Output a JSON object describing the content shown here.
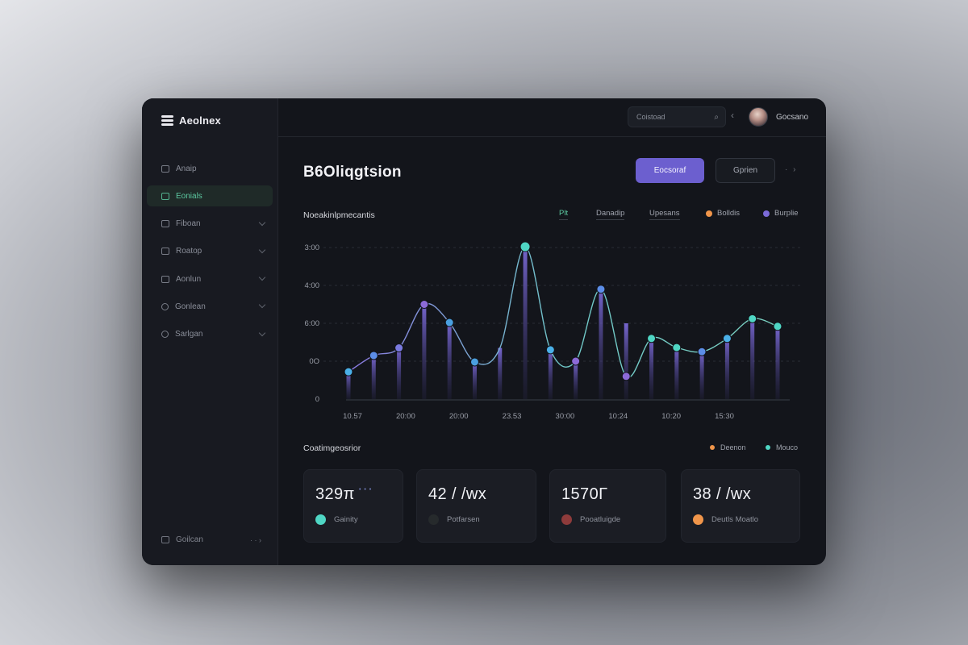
{
  "app": {
    "name": "Aeolnex"
  },
  "colors": {
    "accent": "#6c5fcf",
    "green": "#5cc8a0",
    "teal": "#4fd6c4",
    "purple": "#7b6ad8",
    "orange": "#f0954a",
    "maroon": "#8e3b3b"
  },
  "sidebar": {
    "items": [
      {
        "label": "Anaip",
        "icon": "grid-icon"
      },
      {
        "label": "Eonials",
        "icon": "chart-icon"
      },
      {
        "label": "Fiboan",
        "icon": "folder-icon"
      },
      {
        "label": "Roatop",
        "icon": "layers-icon"
      },
      {
        "label": "Aonlun",
        "icon": "users-icon"
      },
      {
        "label": "Gonlean",
        "icon": "clock-icon"
      },
      {
        "label": "Sarlgan",
        "icon": "settings-icon"
      }
    ],
    "footer": {
      "label": "Goilcan",
      "arrow": "· · ›"
    }
  },
  "topbar": {
    "search_placeholder": "Coistoad",
    "search_icon_glyph": "⌕",
    "back_glyph": "‹",
    "user_name": "Gocsano"
  },
  "header": {
    "title": "B6Oliqgtsion",
    "primary_button": "Eocsoraf",
    "secondary_button": "Gprien",
    "next_glyph": "· ›"
  },
  "chart": {
    "heading": "Noeakinlpmecantis",
    "legend": [
      {
        "label": "Plt",
        "color": "#5cc8a0",
        "style": "underline"
      },
      {
        "label": "Danadip",
        "color": "",
        "style": "underline"
      },
      {
        "label": "Upesans",
        "color": "",
        "style": "underline"
      },
      {
        "label": "Bolldis",
        "color": "#f0954a",
        "style": "dot"
      },
      {
        "label": "Burplie",
        "color": "#7b6ad8",
        "style": "dot"
      }
    ]
  },
  "chart_data": {
    "type": "line",
    "title": "Noeakinlpmecantis",
    "y_tick_labels": [
      "0",
      "0O",
      "6:00",
      "4:00",
      "3:00"
    ],
    "x_tick_labels": [
      "10.57",
      "20:00",
      "20:00",
      "23.53",
      "30:00",
      "10:24",
      "10:20",
      "15:30"
    ],
    "ylim": [
      0,
      4
    ],
    "grid": true,
    "series": [
      {
        "name": "Line",
        "values": [
          0.72,
          1.15,
          1.35,
          2.5,
          2.02,
          0.98,
          1.35,
          4.02,
          1.3,
          1.0,
          2.9,
          0.6,
          1.6,
          1.36,
          1.25,
          1.6,
          2.12,
          1.92
        ],
        "marker_colors": [
          "#4ab0e8",
          "#5c8ee8",
          "#7a7ae0",
          "#8c6ad8",
          "#4aa0e0",
          "#4aa0e0",
          "",
          "#4fd6c4",
          "#4ab0e8",
          "#8c6ad8",
          "#5c8ee8",
          "#8c6ad8",
          "#4fd6c4",
          "#4fd6c4",
          "#5c8ee8",
          "#4ab0e8",
          "#4fd6c4",
          "#4fd6c4"
        ]
      },
      {
        "name": "Bars",
        "values": [
          0.72,
          1.15,
          1.35,
          2.5,
          2.02,
          0.98,
          1.35,
          4.02,
          1.3,
          1.0,
          2.9,
          2.0,
          1.6,
          1.36,
          1.25,
          1.6,
          2.12,
          1.92
        ]
      }
    ]
  },
  "comparisons": {
    "title": "Coatimgeosrior",
    "legend": [
      {
        "label": "Deenon",
        "color": "#f0954a"
      },
      {
        "label": "Mouco",
        "color": "#4fd6c4"
      }
    ],
    "cards": [
      {
        "value": "329π",
        "dots": "• • •",
        "label": "Gainity",
        "color": "#4fd6c4"
      },
      {
        "value": "42 / /wx",
        "dots": "",
        "label": "Potfarsen",
        "color": "#262a2c"
      },
      {
        "value": "1570Г",
        "dots": "",
        "label": "Pooatluigde",
        "color": "#8e3b3b"
      },
      {
        "value": "38 / /wx",
        "dots": "",
        "label": "Deutls Moatlo",
        "color": "#f0954a"
      }
    ]
  }
}
